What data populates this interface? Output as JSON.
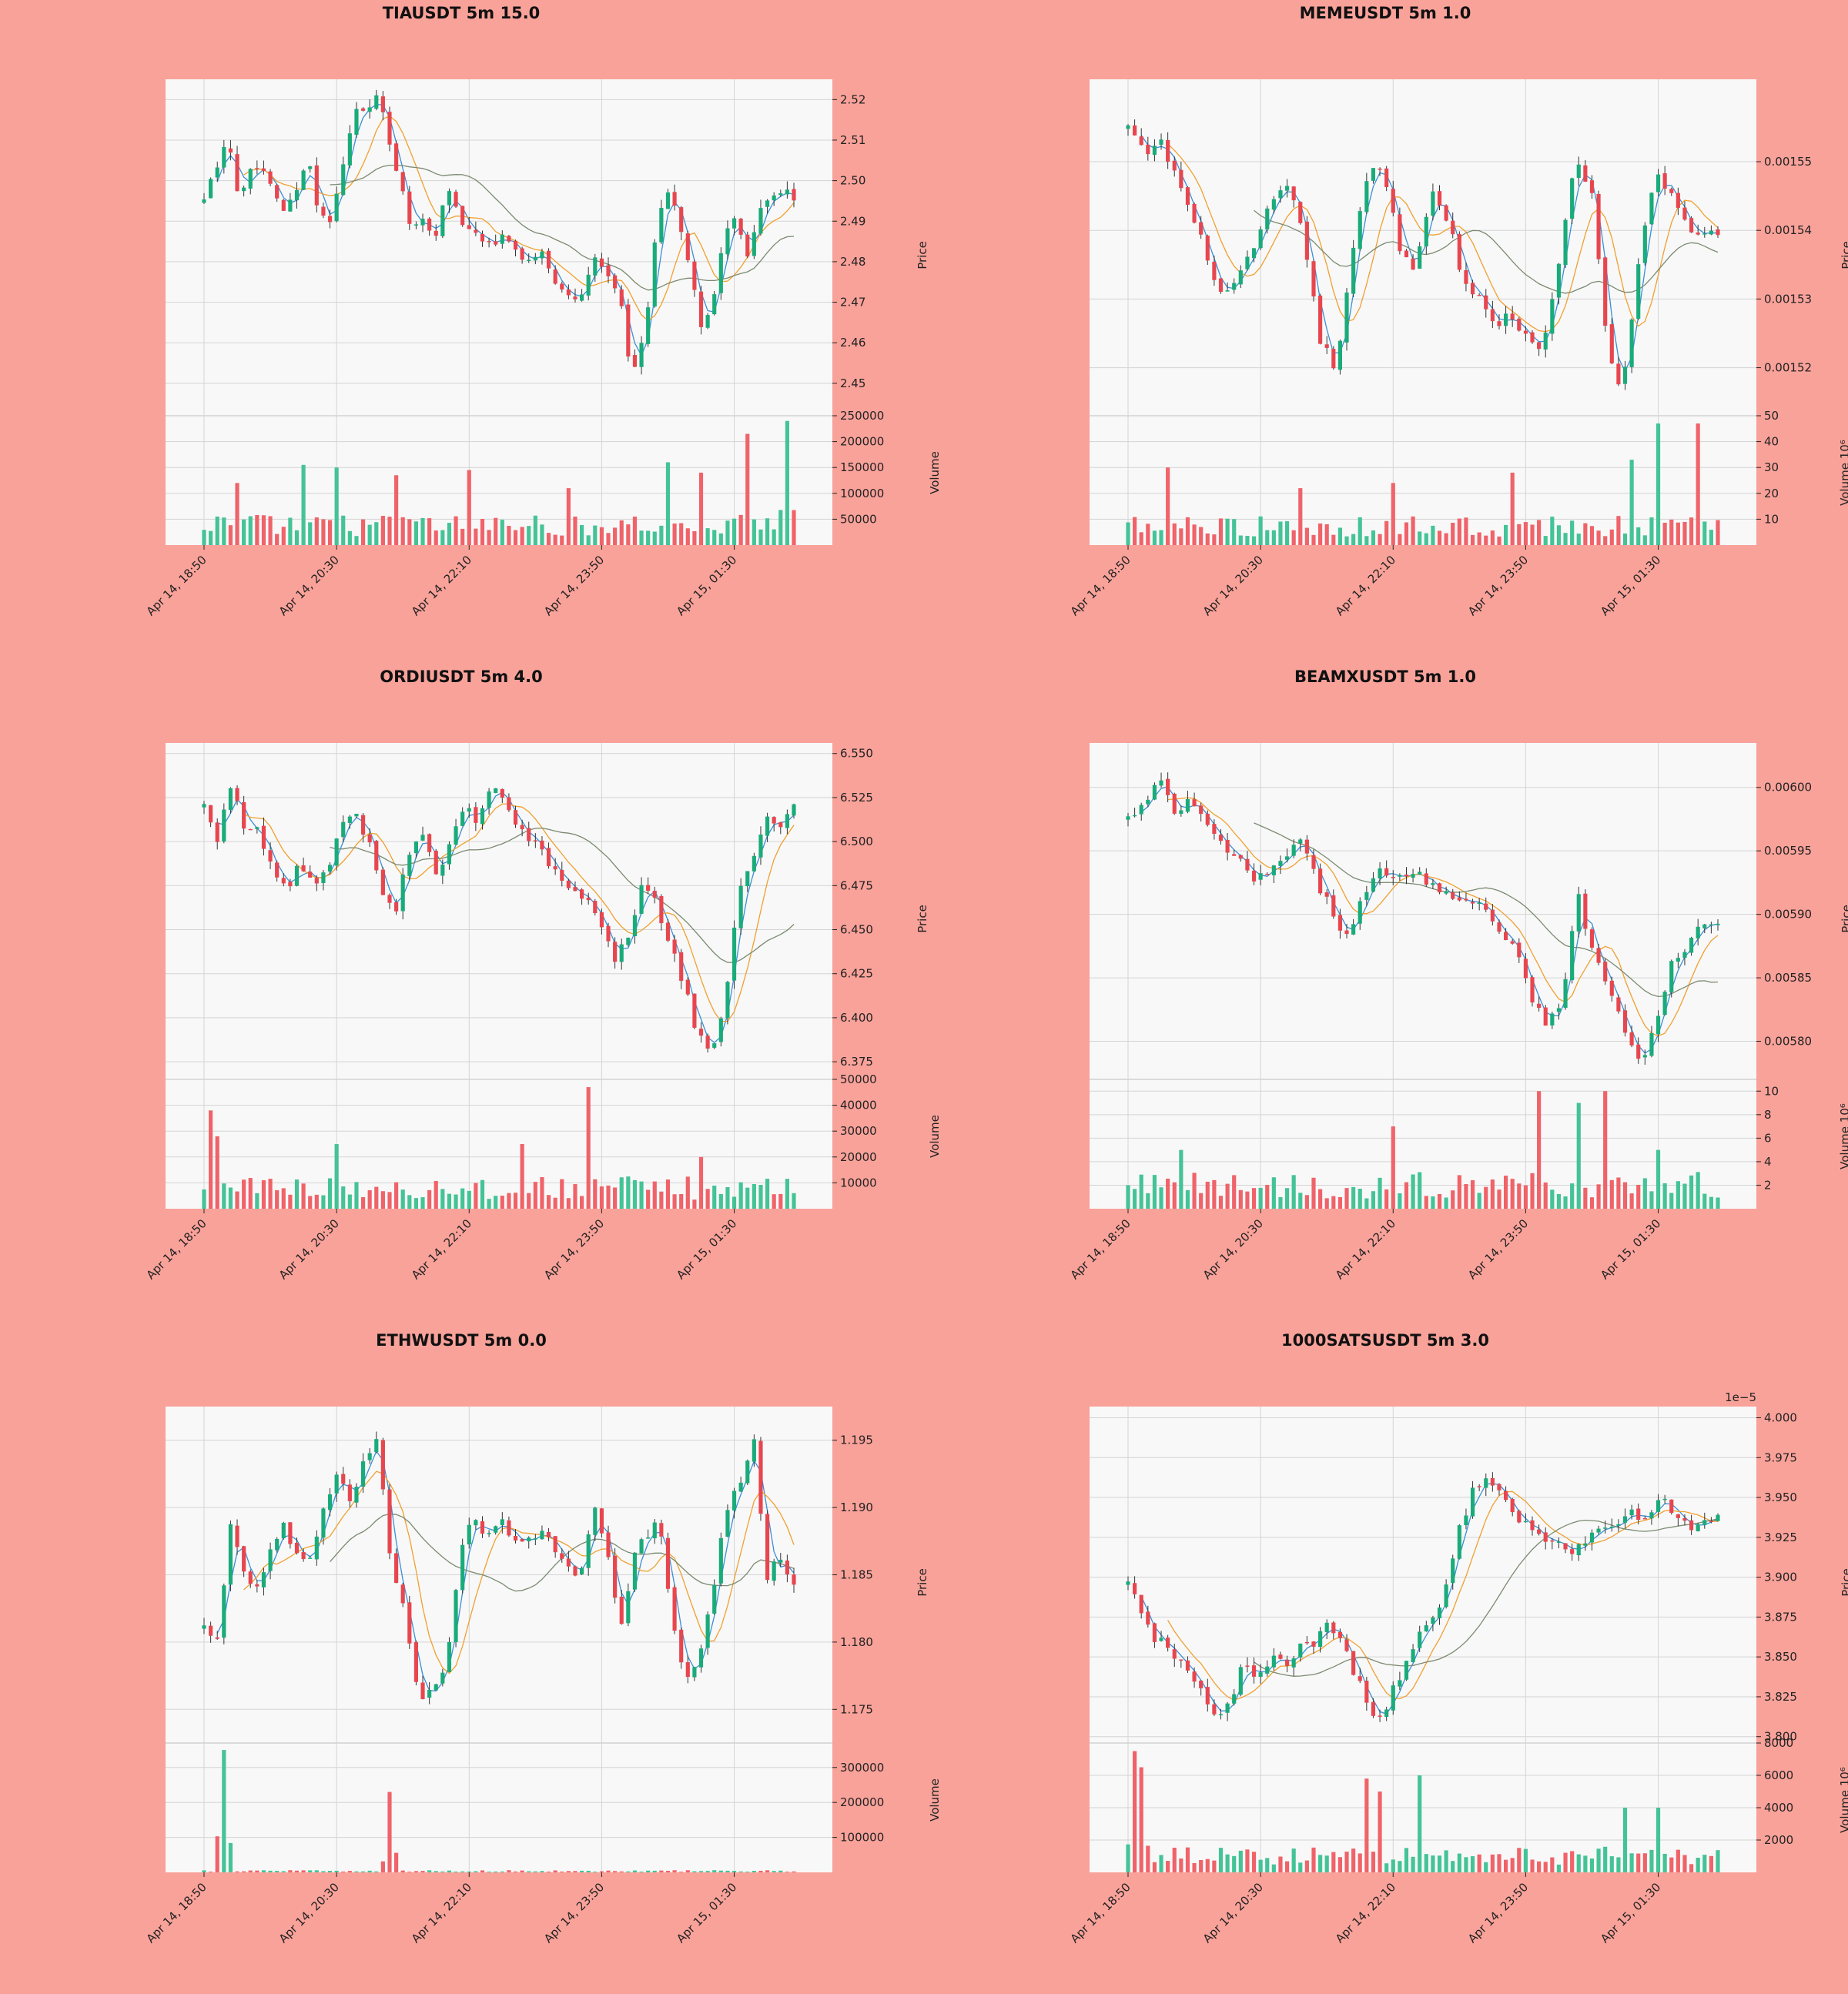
{
  "colors": {
    "background": "#f9a29a",
    "plot_face": "#f8f8f8",
    "up_candle": "#1aab7a",
    "down_candle": "#e8464f",
    "up_volume": "#44c397",
    "down_volume": "#ef6369",
    "ma_short": "#3a8fd6",
    "ma_mid": "#f0a030",
    "ma_long": "#7a8a70",
    "wick": "#333333"
  },
  "chart_data": [
    {
      "type": "candlestick",
      "title": "TIAUSDT 5m 15.0",
      "candles": 90,
      "x_tick_labels": [
        "Apr 14, 18:50",
        "Apr 14, 20:30",
        "Apr 14, 22:10",
        "Apr 14, 23:50",
        "Apr 15, 01:30"
      ],
      "price": {
        "ylabel": "Price",
        "ylim": [
          2.442,
          2.525
        ],
        "ticks": [
          2.45,
          2.46,
          2.47,
          2.48,
          2.49,
          2.5,
          2.51,
          2.52
        ],
        "tick_labels": [
          "2.45",
          "2.46",
          "2.47",
          "2.48",
          "2.49",
          "2.50",
          "2.51",
          "2.52"
        ]
      },
      "volume": {
        "ylabel": "Volume",
        "ylim": [
          0,
          250000
        ],
        "ticks": [
          50000,
          100000,
          150000,
          200000,
          250000
        ],
        "tick_labels": [
          "50000",
          "100000",
          "150000",
          "200000",
          "250000"
        ]
      },
      "path_closes": [
        2.495,
        2.502,
        2.51,
        2.496,
        2.502,
        2.505,
        2.497,
        2.492,
        2.498,
        2.505,
        2.49,
        2.49,
        2.504,
        2.516,
        2.518,
        2.522,
        2.51,
        2.498,
        2.488,
        2.49,
        2.486,
        2.5,
        2.492,
        2.487,
        2.486,
        2.485,
        2.488,
        2.483,
        2.48,
        2.482,
        2.478,
        2.472,
        2.47,
        2.475,
        2.482,
        2.476,
        2.47,
        2.452,
        2.46,
        2.485,
        2.498,
        2.49,
        2.478,
        2.465,
        2.47,
        2.486,
        2.49,
        2.482,
        2.492,
        2.495,
        2.498,
        2.495
      ],
      "volume_peaks": [
        [
          5,
          120000
        ],
        [
          15,
          155000
        ],
        [
          20,
          150000
        ],
        [
          29,
          135000
        ],
        [
          40,
          145000
        ],
        [
          55,
          110000
        ],
        [
          70,
          160000
        ],
        [
          75,
          140000
        ],
        [
          82,
          215000
        ],
        [
          88,
          240000
        ]
      ],
      "volume_base": 48000
    },
    {
      "type": "candlestick",
      "title": "MEMEUSDT 5m 1.0",
      "candles": 90,
      "x_tick_labels": [
        "Apr 14, 18:50",
        "Apr 14, 20:30",
        "Apr 14, 22:10",
        "Apr 14, 23:50",
        "Apr 15, 01:30"
      ],
      "price": {
        "ylabel": "Price",
        "ylim": [
          0.001513,
          0.001562
        ],
        "ticks": [
          0.00152,
          0.00153,
          0.00154,
          0.00155
        ],
        "tick_labels": [
          "0.00152",
          "0.00153",
          "0.00154",
          "0.00155"
        ]
      },
      "volume": {
        "ylabel": "Volume  10⁶",
        "ylim": [
          0,
          50
        ],
        "ticks": [
          10,
          20,
          30,
          40,
          50
        ],
        "tick_labels": [
          "10",
          "20",
          "30",
          "40",
          "50"
        ]
      },
      "path_closes": [
        0.001555,
        0.001551,
        0.001553,
        0.001548,
        0.001542,
        0.001536,
        0.00153,
        0.001533,
        0.001538,
        0.001544,
        0.001546,
        0.00154,
        0.001524,
        0.00152,
        0.001535,
        0.001548,
        0.001549,
        0.001538,
        0.001534,
        0.001546,
        0.001542,
        0.001533,
        0.00153,
        0.001526,
        0.001528,
        0.001524,
        0.001522,
        0.001535,
        0.00155,
        0.001547,
        0.001524,
        0.001516,
        0.001535,
        0.001548,
        0.001546,
        0.001541,
        0.001539,
        0.00154
      ],
      "volume_peaks": [
        [
          6,
          30
        ],
        [
          26,
          22
        ],
        [
          40,
          24
        ],
        [
          58,
          28
        ],
        [
          76,
          33
        ],
        [
          80,
          47
        ],
        [
          86,
          47
        ]
      ],
      "volume_base": 9
    },
    {
      "type": "candlestick",
      "title": "ORDIUSDT 5m 4.0",
      "candles": 90,
      "x_tick_labels": [
        "Apr 14, 18:50",
        "Apr 14, 20:30",
        "Apr 14, 22:10",
        "Apr 14, 23:50",
        "Apr 15, 01:30"
      ],
      "price": {
        "ylabel": "Price",
        "ylim": [
          6.365,
          6.556
        ],
        "ticks": [
          6.375,
          6.4,
          6.425,
          6.45,
          6.475,
          6.5,
          6.525,
          6.55
        ],
        "tick_labels": [
          "6.375",
          "6.400",
          "6.425",
          "6.450",
          "6.475",
          "6.500",
          "6.525",
          "6.550"
        ]
      },
      "volume": {
        "ylabel": "Volume",
        "ylim": [
          0,
          50000
        ],
        "ticks": [
          10000,
          20000,
          30000,
          40000,
          50000
        ],
        "tick_labels": [
          "10000",
          "20000",
          "30000",
          "40000",
          "50000"
        ]
      },
      "path_closes": [
        6.52,
        6.5,
        6.535,
        6.508,
        6.505,
        6.485,
        6.47,
        6.49,
        6.475,
        6.482,
        6.51,
        6.515,
        6.5,
        6.47,
        6.462,
        6.495,
        6.505,
        6.48,
        6.5,
        6.52,
        6.51,
        6.535,
        6.525,
        6.505,
        6.5,
        6.49,
        6.478,
        6.47,
        6.465,
        6.45,
        6.43,
        6.45,
        6.475,
        6.465,
        6.44,
        6.42,
        6.39,
        6.38,
        6.41,
        6.47,
        6.49,
        6.515,
        6.51,
        6.52
      ],
      "volume_peaks": [
        [
          1,
          38000
        ],
        [
          2,
          28000
        ],
        [
          20,
          25000
        ],
        [
          48,
          25000
        ],
        [
          58,
          47000
        ],
        [
          75,
          20000
        ]
      ],
      "volume_base": 10000
    },
    {
      "type": "candlestick",
      "title": "BEAMXUSDT 5m 1.0",
      "candles": 90,
      "x_tick_labels": [
        "Apr 14, 18:50",
        "Apr 14, 20:30",
        "Apr 14, 22:10",
        "Apr 14, 23:50",
        "Apr 15, 01:30"
      ],
      "price": {
        "ylabel": "Price",
        "ylim": [
          0.00577,
          0.006035
        ],
        "ticks": [
          0.0058,
          0.00585,
          0.0059,
          0.00595,
          0.006
        ],
        "tick_labels": [
          "0.00580",
          "0.00585",
          "0.00590",
          "0.00595",
          "0.00600"
        ]
      },
      "volume": {
        "ylabel": "Volume  10⁶",
        "ylim": [
          0,
          11
        ],
        "ticks": [
          2,
          4,
          6,
          8,
          10
        ],
        "tick_labels": [
          "2",
          "4",
          "6",
          "8",
          "10"
        ]
      },
      "path_closes": [
        0.005975,
        0.005985,
        0.006005,
        0.00598,
        0.00599,
        0.00597,
        0.005955,
        0.005945,
        0.005925,
        0.005935,
        0.00594,
        0.00596,
        0.00593,
        0.005905,
        0.005885,
        0.005908,
        0.005935,
        0.005925,
        0.005935,
        0.00593,
        0.00592,
        0.00591,
        0.005915,
        0.005905,
        0.005885,
        0.005875,
        0.005835,
        0.005815,
        0.005835,
        0.005915,
        0.005865,
        0.005845,
        0.005805,
        0.005785,
        0.00581,
        0.00586,
        0.005875,
        0.00589,
        0.005895
      ],
      "volume_peaks": [
        [
          8,
          5
        ],
        [
          40,
          7
        ],
        [
          62,
          10
        ],
        [
          68,
          9
        ],
        [
          72,
          10
        ],
        [
          80,
          5
        ]
      ],
      "volume_base": 2.5
    },
    {
      "type": "candlestick",
      "title": "ETHWUSDT 5m 0.0",
      "candles": 90,
      "x_tick_labels": [
        "Apr 14, 18:50",
        "Apr 14, 20:30",
        "Apr 14, 22:10",
        "Apr 14, 23:50",
        "Apr 15, 01:30"
      ],
      "price": {
        "ylabel": "Price",
        "ylim": [
          1.1725,
          1.1975
        ],
        "ticks": [
          1.175,
          1.18,
          1.185,
          1.19,
          1.195
        ],
        "tick_labels": [
          "1.175",
          "1.180",
          "1.185",
          "1.190",
          "1.195"
        ]
      },
      "volume": {
        "ylabel": "Volume",
        "ylim": [
          0,
          370000
        ],
        "ticks": [
          100000,
          200000,
          300000
        ],
        "tick_labels": [
          "100000",
          "200000",
          "300000"
        ]
      },
      "path_closes": [
        1.181,
        1.1805,
        1.189,
        1.185,
        1.184,
        1.187,
        1.189,
        1.186,
        1.1865,
        1.19,
        1.1925,
        1.19,
        1.1935,
        1.195,
        1.185,
        1.182,
        1.176,
        1.1765,
        1.178,
        1.186,
        1.189,
        1.188,
        1.189,
        1.188,
        1.187,
        1.1885,
        1.187,
        1.186,
        1.185,
        1.19,
        1.1875,
        1.181,
        1.186,
        1.188,
        1.189,
        1.181,
        1.177,
        1.179,
        1.184,
        1.19,
        1.192,
        1.1955,
        1.185,
        1.1865,
        1.184
      ],
      "volume_peaks": [
        [
          3,
          350000
        ],
        [
          28,
          230000
        ]
      ],
      "volume_base": 5000
    },
    {
      "type": "candlestick",
      "title": "1000SATSUSDT 5m 3.0",
      "candles": 90,
      "x_tick_labels": [
        "Apr 14, 18:50",
        "Apr 14, 20:30",
        "Apr 14, 22:10",
        "Apr 14, 23:50",
        "Apr 15, 01:30"
      ],
      "price": {
        "ylabel": "Price",
        "offset_label": "1e−5",
        "ylim": [
          3.796,
          4.007
        ],
        "ticks": [
          3.8,
          3.825,
          3.85,
          3.875,
          3.9,
          3.925,
          3.95,
          3.975,
          4.0
        ],
        "tick_labels": [
          "3.800",
          "3.825",
          "3.850",
          "3.875",
          "3.900",
          "3.925",
          "3.950",
          "3.975",
          "4.000"
        ]
      },
      "volume": {
        "ylabel": "Volume  10⁶",
        "ylim": [
          0,
          8000
        ],
        "ticks": [
          2000,
          4000,
          6000,
          8000
        ],
        "tick_labels": [
          "2000",
          "4000",
          "6000",
          "8000"
        ]
      },
      "path_closes": [
        3.895,
        3.875,
        3.86,
        3.855,
        3.84,
        3.83,
        3.815,
        3.82,
        3.845,
        3.835,
        3.85,
        3.845,
        3.855,
        3.86,
        3.87,
        3.855,
        3.835,
        3.81,
        3.82,
        3.84,
        3.86,
        3.87,
        3.89,
        3.93,
        3.955,
        3.965,
        3.95,
        3.935,
        3.93,
        3.925,
        3.92,
        3.915,
        3.925,
        3.93,
        3.935,
        3.94,
        3.935,
        3.95,
        3.94,
        3.93,
        3.935,
        3.94
      ],
      "volume_peaks": [
        [
          1,
          7500
        ],
        [
          2,
          6500
        ],
        [
          36,
          5800
        ],
        [
          38,
          5000
        ],
        [
          44,
          6000
        ],
        [
          75,
          4000
        ],
        [
          80,
          4000
        ]
      ],
      "volume_base": 1300
    }
  ]
}
